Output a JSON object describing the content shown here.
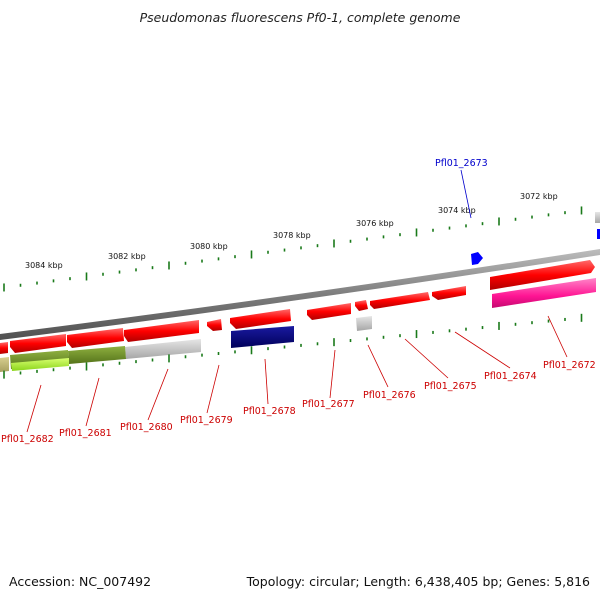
{
  "title": "Pseudomonas fluorescens Pf0-1, complete genome",
  "footer": {
    "accession": "Accession: NC_007492",
    "summary": "Topology: circular; Length: 6,438,405 bp; Genes: 5,816"
  },
  "scale_labels": [
    "3084 kbp",
    "3082 kbp",
    "3080 kbp",
    "3078 kbp",
    "3076 kbp",
    "3074 kbp",
    "3072 kbp"
  ],
  "highlighted_gene": "Pfl01_2673",
  "gene_labels": [
    "Pfl01_2682",
    "Pfl01_2681",
    "Pfl01_2680",
    "Pfl01_2679",
    "Pfl01_2678",
    "Pfl01_2677",
    "Pfl01_2676",
    "Pfl01_2675",
    "Pfl01_2674",
    "Pfl01_2672"
  ],
  "colors": {
    "forward_gene": "#ff0000",
    "highlight_gene": "#0000ff",
    "magenta_gene": "#ff1493",
    "navy_gene": "#000080",
    "olive_gene": "#6b8e23",
    "lime_gene": "#adff2f",
    "gray_gene": "#c0c0c0",
    "backbone": "#808080",
    "tick": "#1a7a1a",
    "label": "#cc0000",
    "highlight_label": "#0000cc"
  }
}
